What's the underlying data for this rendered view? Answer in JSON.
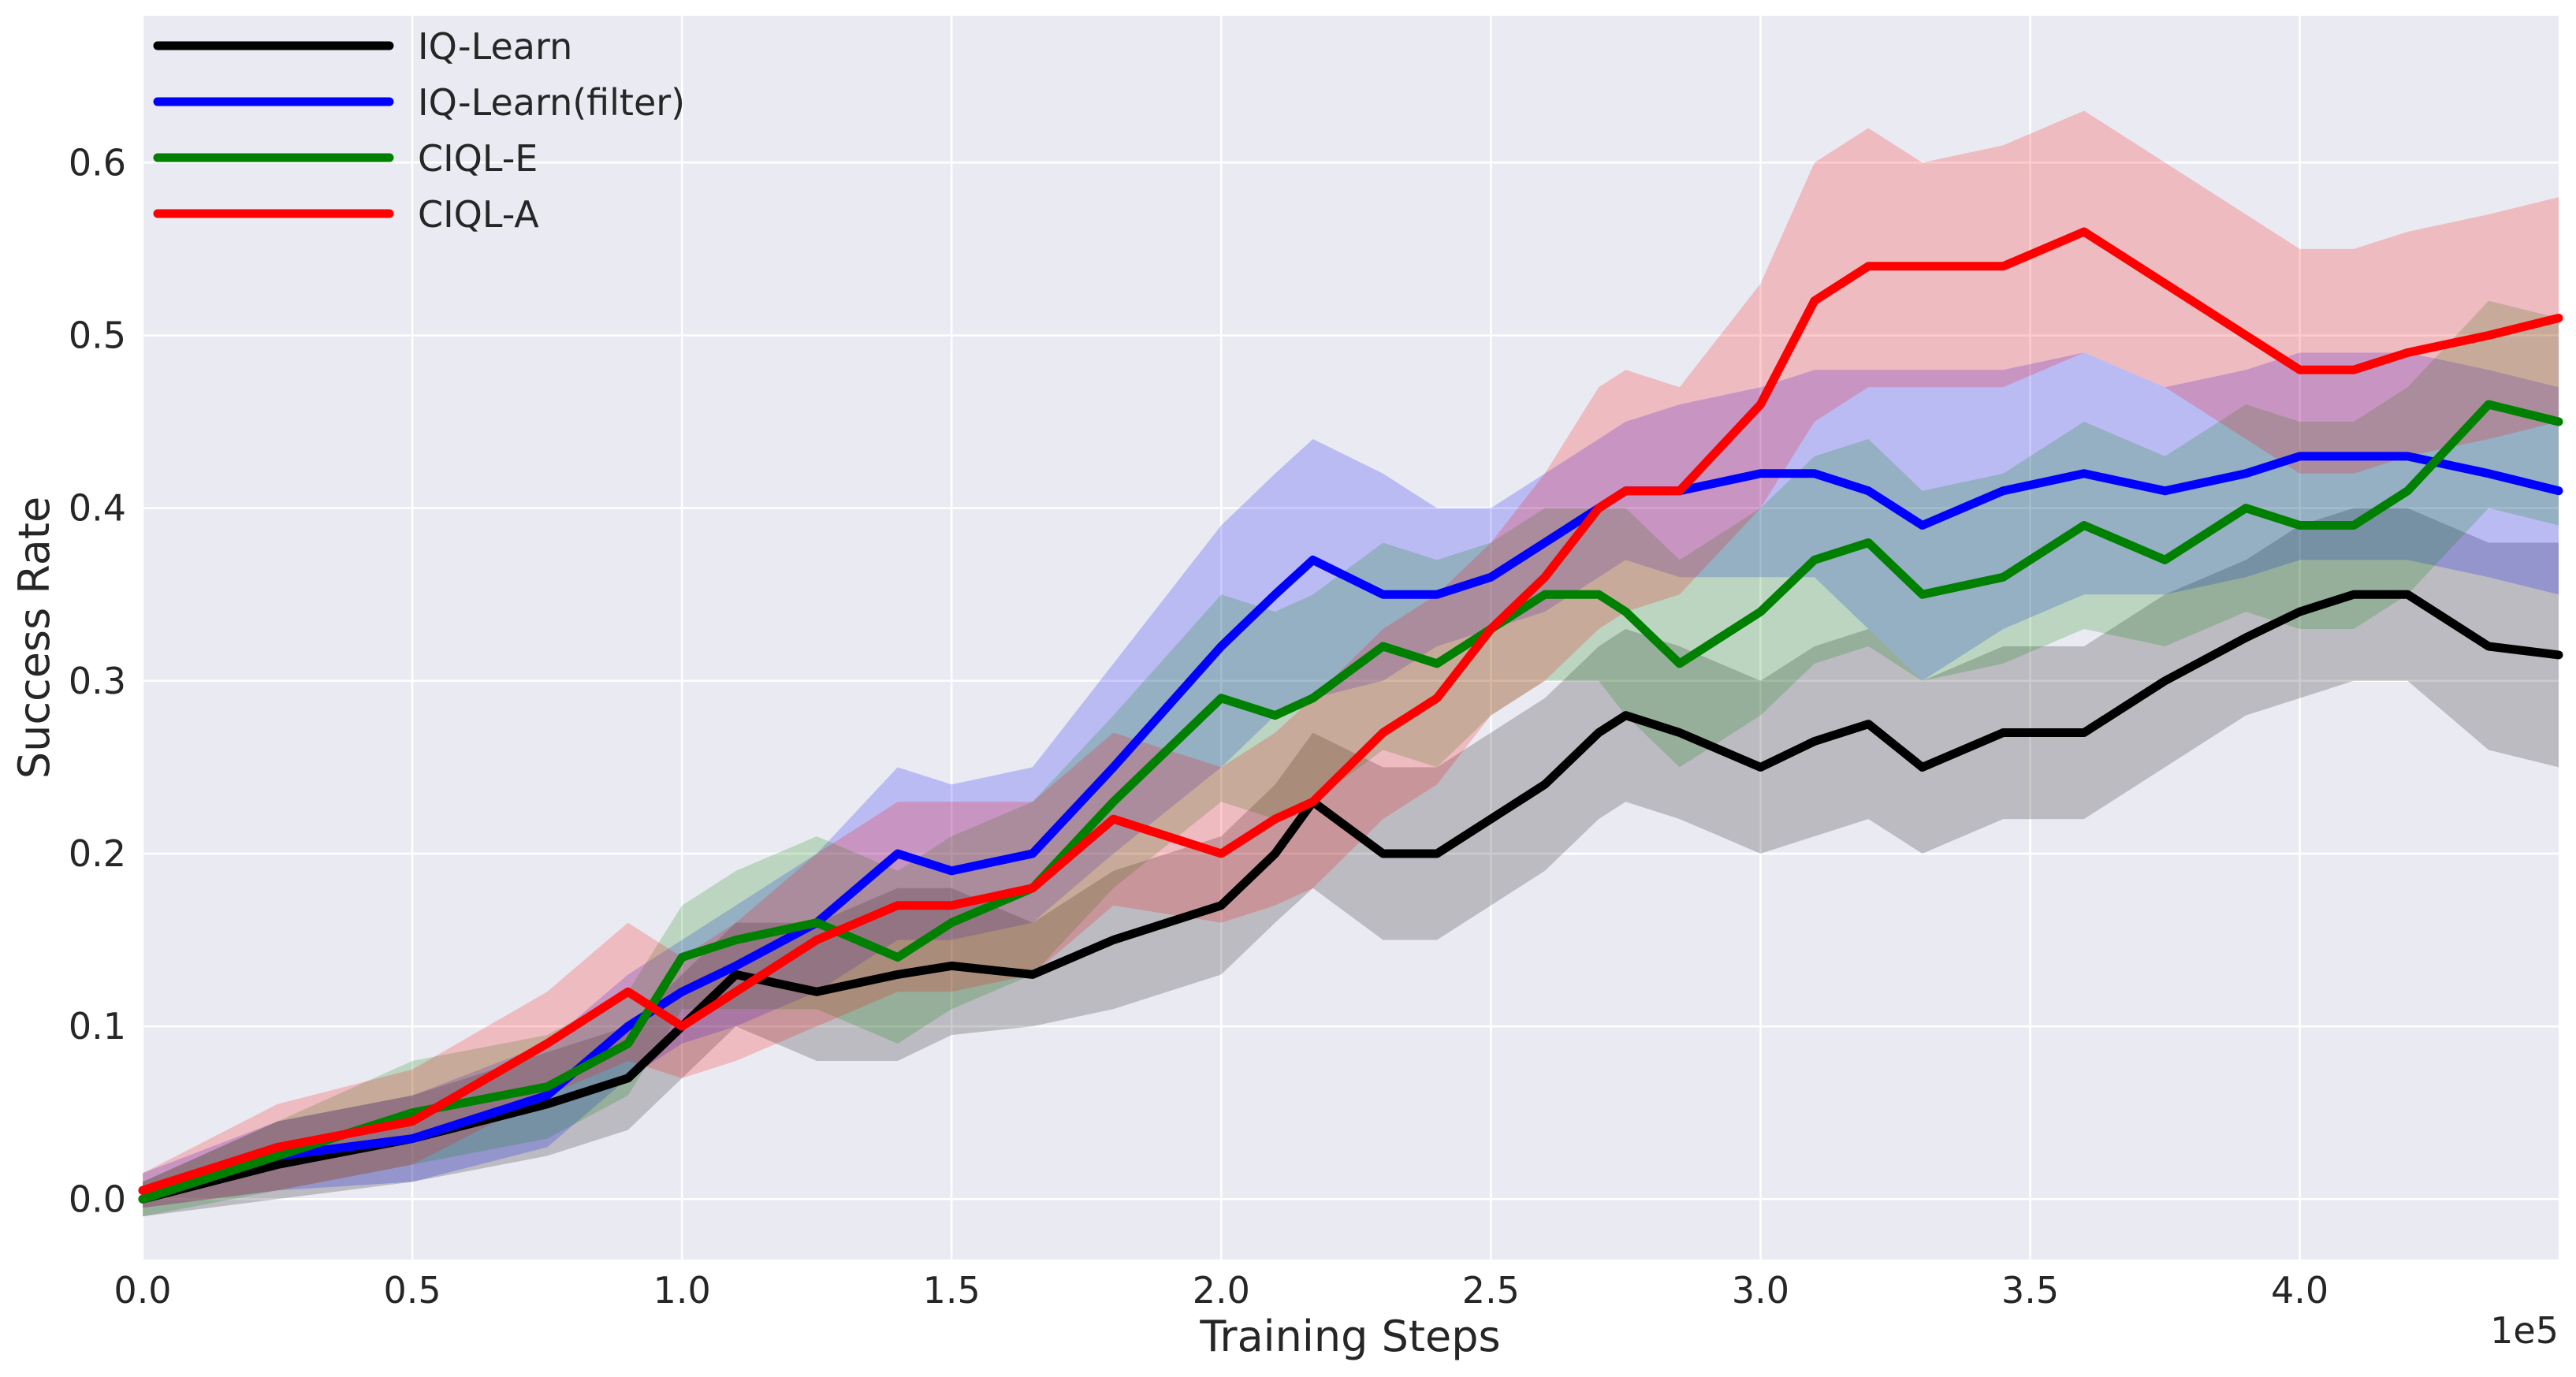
{
  "chart_data": {
    "type": "line",
    "xlabel": "Training Steps",
    "ylabel": "Success Rate",
    "x_multiplier_label": "1e5",
    "xlim": [
      0.0,
      4.48
    ],
    "ylim": [
      -0.035,
      0.685
    ],
    "xticks": [
      0.0,
      0.5,
      1.0,
      1.5,
      2.0,
      2.5,
      3.0,
      3.5,
      4.0
    ],
    "xtick_labels": [
      "0.0",
      "0.5",
      "1.0",
      "1.5",
      "2.0",
      "2.5",
      "3.0",
      "3.5",
      "4.0"
    ],
    "yticks": [
      0.0,
      0.1,
      0.2,
      0.3,
      0.4,
      0.5,
      0.6
    ],
    "ytick_labels": [
      "0.0",
      "0.1",
      "0.2",
      "0.3",
      "0.4",
      "0.5",
      "0.6"
    ],
    "grid": true,
    "legend_position": "top-left",
    "background_color": "#eaeaf2",
    "x": [
      0.0,
      0.25,
      0.5,
      0.75,
      0.9,
      1.0,
      1.1,
      1.25,
      1.4,
      1.5,
      1.65,
      1.8,
      2.0,
      2.1,
      2.17,
      2.3,
      2.4,
      2.5,
      2.6,
      2.7,
      2.75,
      2.85,
      3.0,
      3.1,
      3.2,
      3.3,
      3.45,
      3.6,
      3.75,
      3.9,
      4.0,
      4.1,
      4.2,
      4.35,
      4.48
    ],
    "series": [
      {
        "name": "IQ-Learn",
        "color": "#000000",
        "values": [
          0.0,
          0.02,
          0.035,
          0.055,
          0.07,
          0.1,
          0.13,
          0.12,
          0.13,
          0.135,
          0.13,
          0.15,
          0.17,
          0.2,
          0.23,
          0.2,
          0.2,
          0.22,
          0.24,
          0.27,
          0.28,
          0.27,
          0.25,
          0.265,
          0.275,
          0.25,
          0.27,
          0.27,
          0.3,
          0.325,
          0.34,
          0.35,
          0.35,
          0.32,
          0.315
        ],
        "lower": [
          -0.01,
          0.0,
          0.01,
          0.025,
          0.04,
          0.07,
          0.1,
          0.08,
          0.08,
          0.095,
          0.1,
          0.11,
          0.13,
          0.16,
          0.18,
          0.15,
          0.15,
          0.17,
          0.19,
          0.22,
          0.23,
          0.22,
          0.2,
          0.21,
          0.22,
          0.2,
          0.22,
          0.22,
          0.25,
          0.28,
          0.29,
          0.3,
          0.3,
          0.26,
          0.25
        ],
        "upper": [
          0.01,
          0.045,
          0.06,
          0.085,
          0.1,
          0.13,
          0.16,
          0.16,
          0.18,
          0.18,
          0.16,
          0.19,
          0.21,
          0.24,
          0.27,
          0.25,
          0.25,
          0.27,
          0.29,
          0.32,
          0.33,
          0.32,
          0.3,
          0.32,
          0.33,
          0.3,
          0.32,
          0.32,
          0.35,
          0.37,
          0.39,
          0.4,
          0.4,
          0.38,
          0.38
        ]
      },
      {
        "name": "IQ-Learn(filter)",
        "color": "#0000ff",
        "values": [
          0.005,
          0.025,
          0.035,
          0.06,
          0.1,
          0.12,
          0.135,
          0.16,
          0.2,
          0.19,
          0.2,
          0.25,
          0.32,
          0.35,
          0.37,
          0.35,
          0.35,
          0.36,
          0.38,
          0.4,
          0.41,
          0.41,
          0.42,
          0.42,
          0.41,
          0.39,
          0.41,
          0.42,
          0.41,
          0.42,
          0.43,
          0.43,
          0.43,
          0.42,
          0.41
        ],
        "lower": [
          -0.005,
          0.005,
          0.01,
          0.03,
          0.07,
          0.09,
          0.1,
          0.12,
          0.15,
          0.15,
          0.16,
          0.2,
          0.25,
          0.28,
          0.29,
          0.3,
          0.32,
          0.33,
          0.34,
          0.36,
          0.37,
          0.36,
          0.36,
          0.36,
          0.33,
          0.3,
          0.33,
          0.35,
          0.35,
          0.36,
          0.37,
          0.37,
          0.37,
          0.36,
          0.35
        ],
        "upper": [
          0.015,
          0.045,
          0.06,
          0.09,
          0.13,
          0.15,
          0.17,
          0.2,
          0.25,
          0.24,
          0.25,
          0.31,
          0.39,
          0.42,
          0.44,
          0.42,
          0.4,
          0.4,
          0.42,
          0.44,
          0.45,
          0.46,
          0.47,
          0.48,
          0.48,
          0.48,
          0.48,
          0.49,
          0.47,
          0.48,
          0.49,
          0.49,
          0.49,
          0.48,
          0.47
        ]
      },
      {
        "name": "CIQL-E",
        "color": "#008000",
        "values": [
          0.0,
          0.025,
          0.05,
          0.065,
          0.09,
          0.14,
          0.15,
          0.16,
          0.14,
          0.16,
          0.18,
          0.23,
          0.29,
          0.28,
          0.29,
          0.32,
          0.31,
          0.33,
          0.35,
          0.35,
          0.34,
          0.31,
          0.34,
          0.37,
          0.38,
          0.35,
          0.36,
          0.39,
          0.37,
          0.4,
          0.39,
          0.39,
          0.41,
          0.46,
          0.45
        ],
        "lower": [
          -0.01,
          0.005,
          0.02,
          0.035,
          0.06,
          0.11,
          0.11,
          0.11,
          0.09,
          0.11,
          0.13,
          0.18,
          0.23,
          0.22,
          0.23,
          0.26,
          0.25,
          0.28,
          0.3,
          0.3,
          0.28,
          0.25,
          0.28,
          0.31,
          0.32,
          0.3,
          0.31,
          0.33,
          0.32,
          0.34,
          0.33,
          0.33,
          0.35,
          0.4,
          0.39
        ],
        "upper": [
          0.01,
          0.045,
          0.08,
          0.095,
          0.12,
          0.17,
          0.19,
          0.21,
          0.19,
          0.21,
          0.23,
          0.28,
          0.35,
          0.34,
          0.35,
          0.38,
          0.37,
          0.38,
          0.4,
          0.4,
          0.4,
          0.37,
          0.4,
          0.43,
          0.44,
          0.41,
          0.42,
          0.45,
          0.43,
          0.46,
          0.45,
          0.45,
          0.47,
          0.52,
          0.51
        ]
      },
      {
        "name": "CIQL-A",
        "color": "#ff0000",
        "values": [
          0.005,
          0.03,
          0.045,
          0.09,
          0.12,
          0.1,
          0.12,
          0.15,
          0.17,
          0.17,
          0.18,
          0.22,
          0.2,
          0.22,
          0.23,
          0.27,
          0.29,
          0.33,
          0.36,
          0.4,
          0.41,
          0.41,
          0.46,
          0.52,
          0.54,
          0.54,
          0.54,
          0.56,
          0.53,
          0.5,
          0.48,
          0.48,
          0.49,
          0.5,
          0.51
        ],
        "lower": [
          -0.005,
          0.005,
          0.02,
          0.06,
          0.08,
          0.07,
          0.08,
          0.1,
          0.12,
          0.12,
          0.13,
          0.17,
          0.16,
          0.17,
          0.18,
          0.22,
          0.24,
          0.28,
          0.3,
          0.33,
          0.34,
          0.35,
          0.4,
          0.45,
          0.47,
          0.47,
          0.47,
          0.49,
          0.47,
          0.44,
          0.42,
          0.42,
          0.43,
          0.44,
          0.45
        ],
        "upper": [
          0.015,
          0.055,
          0.075,
          0.12,
          0.16,
          0.14,
          0.16,
          0.2,
          0.23,
          0.23,
          0.23,
          0.27,
          0.25,
          0.27,
          0.29,
          0.33,
          0.35,
          0.38,
          0.42,
          0.47,
          0.48,
          0.47,
          0.53,
          0.6,
          0.62,
          0.6,
          0.61,
          0.63,
          0.6,
          0.57,
          0.55,
          0.55,
          0.56,
          0.57,
          0.58
        ]
      }
    ]
  }
}
